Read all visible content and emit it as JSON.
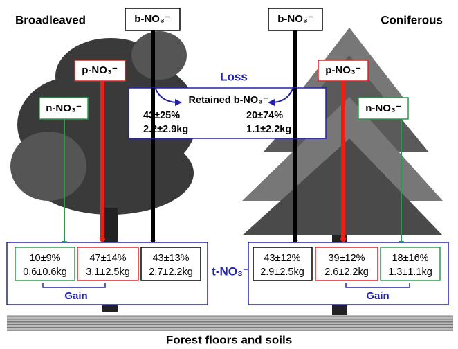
{
  "broadleaved": {
    "title": "Broadleaved",
    "sources": {
      "b": "b-NO₃⁻",
      "p": "p-NO₃⁻",
      "n": "n-NO₃⁻"
    },
    "boxes": [
      {
        "percent": "10±9%",
        "mass": "0.6±0.6kg"
      },
      {
        "percent": "47±14%",
        "mass": "3.1±2.5kg"
      },
      {
        "percent": "43±13%",
        "mass": "2.7±2.2kg"
      }
    ],
    "gain": "Gain"
  },
  "coniferous": {
    "title": "Coniferous",
    "sources": {
      "b": "b-NO₃⁻",
      "p": "p-NO₃⁻",
      "n": "n-NO₃⁻"
    },
    "boxes": [
      {
        "percent": "43±12%",
        "mass": "2.9±2.5kg"
      },
      {
        "percent": "39±12%",
        "mass": "2.6±2.2kg"
      },
      {
        "percent": "18±16%",
        "mass": "1.3±1.1kg"
      }
    ],
    "gain": "Gain"
  },
  "loss": "Loss",
  "retained": {
    "title": "Retained b-NO₃⁻",
    "broadleaved": {
      "percent": "43±25%",
      "mass": "2.2±2.9kg"
    },
    "coniferous": {
      "percent": "20±74%",
      "mass": "1.1±2.2kg"
    }
  },
  "total": "t-NO₃⁻",
  "ground": "Forest floors and soils"
}
